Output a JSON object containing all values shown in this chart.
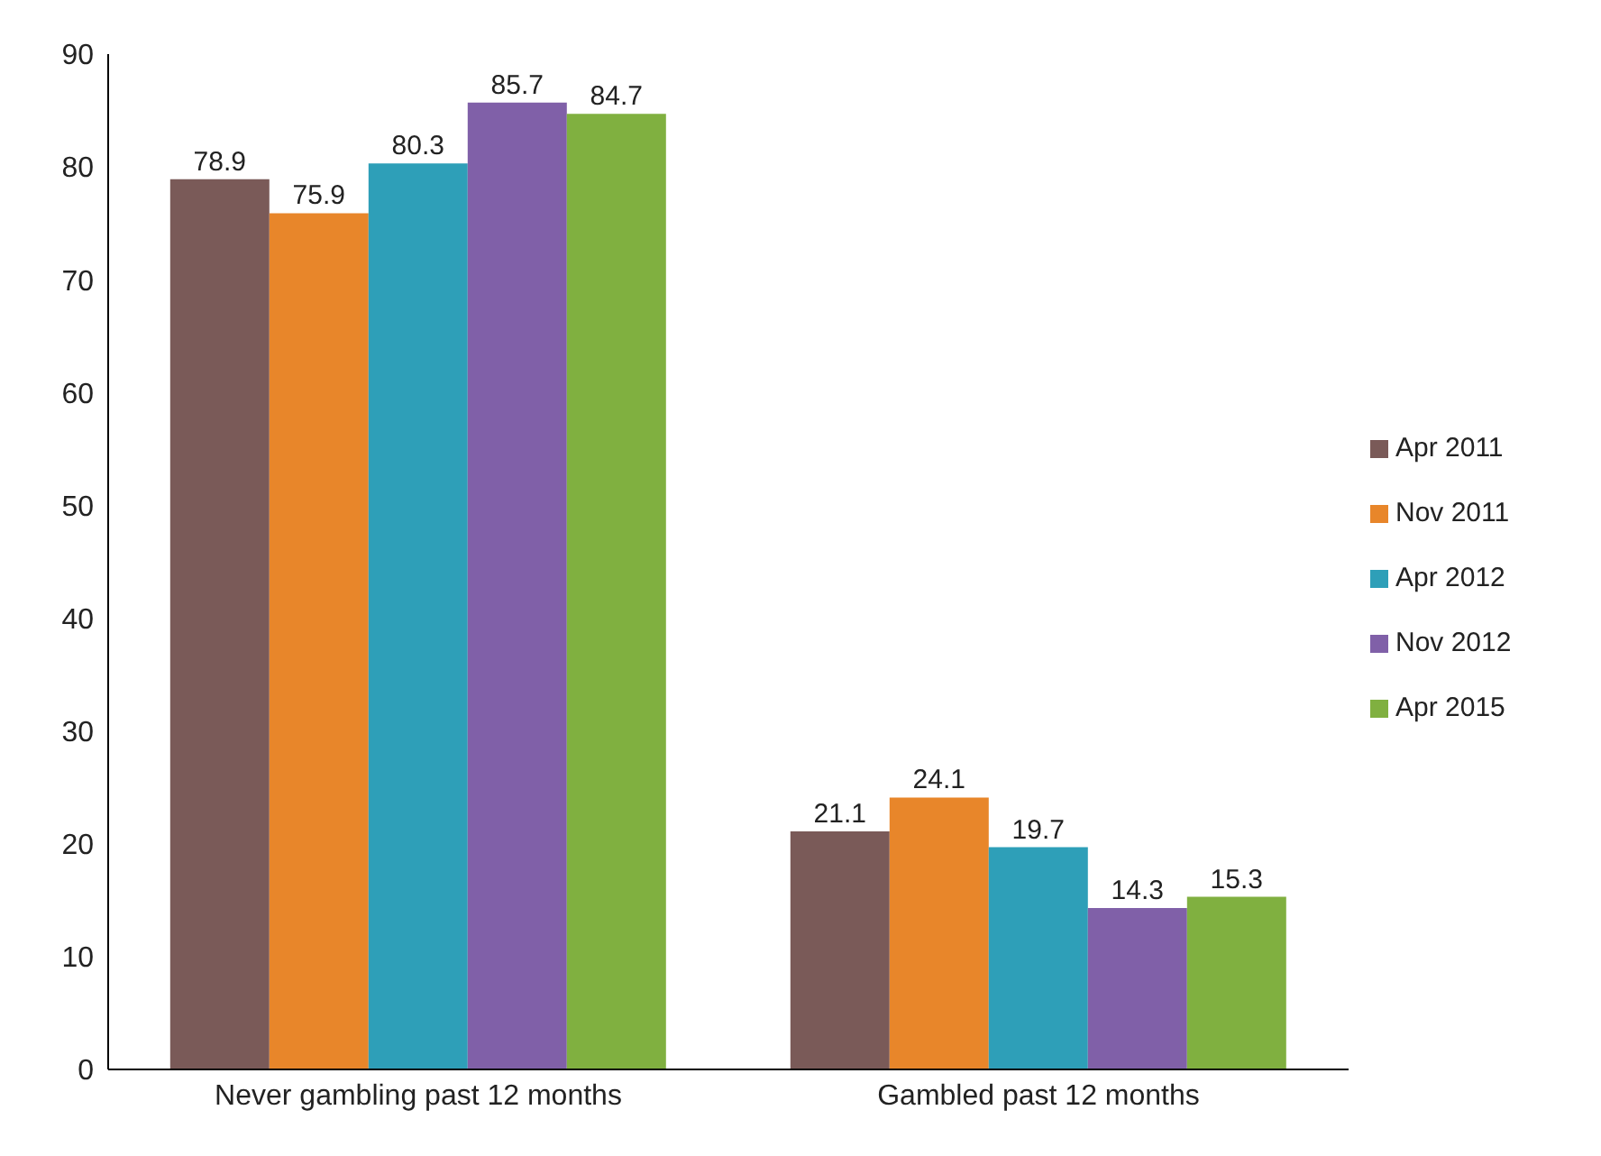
{
  "chart_data": {
    "type": "bar",
    "categories": [
      "Never gambling past 12 months",
      "Gambled past 12 months"
    ],
    "series": [
      {
        "name": "Apr 2011",
        "color": "#7a5a58",
        "values": [
          78.9,
          21.1
        ]
      },
      {
        "name": "Nov 2011",
        "color": "#e8862a",
        "values": [
          75.9,
          24.1
        ]
      },
      {
        "name": "Apr 2012",
        "color": "#2e9fb8",
        "values": [
          80.3,
          19.7
        ]
      },
      {
        "name": "Nov 2012",
        "color": "#8060a8",
        "values": [
          85.7,
          14.3
        ]
      },
      {
        "name": "Apr 2015",
        "color": "#80b040",
        "values": [
          84.7,
          15.3
        ]
      }
    ],
    "ylim": [
      0,
      90
    ],
    "yticks": [
      0,
      10,
      20,
      30,
      40,
      50,
      60,
      70,
      80,
      90
    ],
    "data_labels": true,
    "legend": "right",
    "grid": false
  }
}
